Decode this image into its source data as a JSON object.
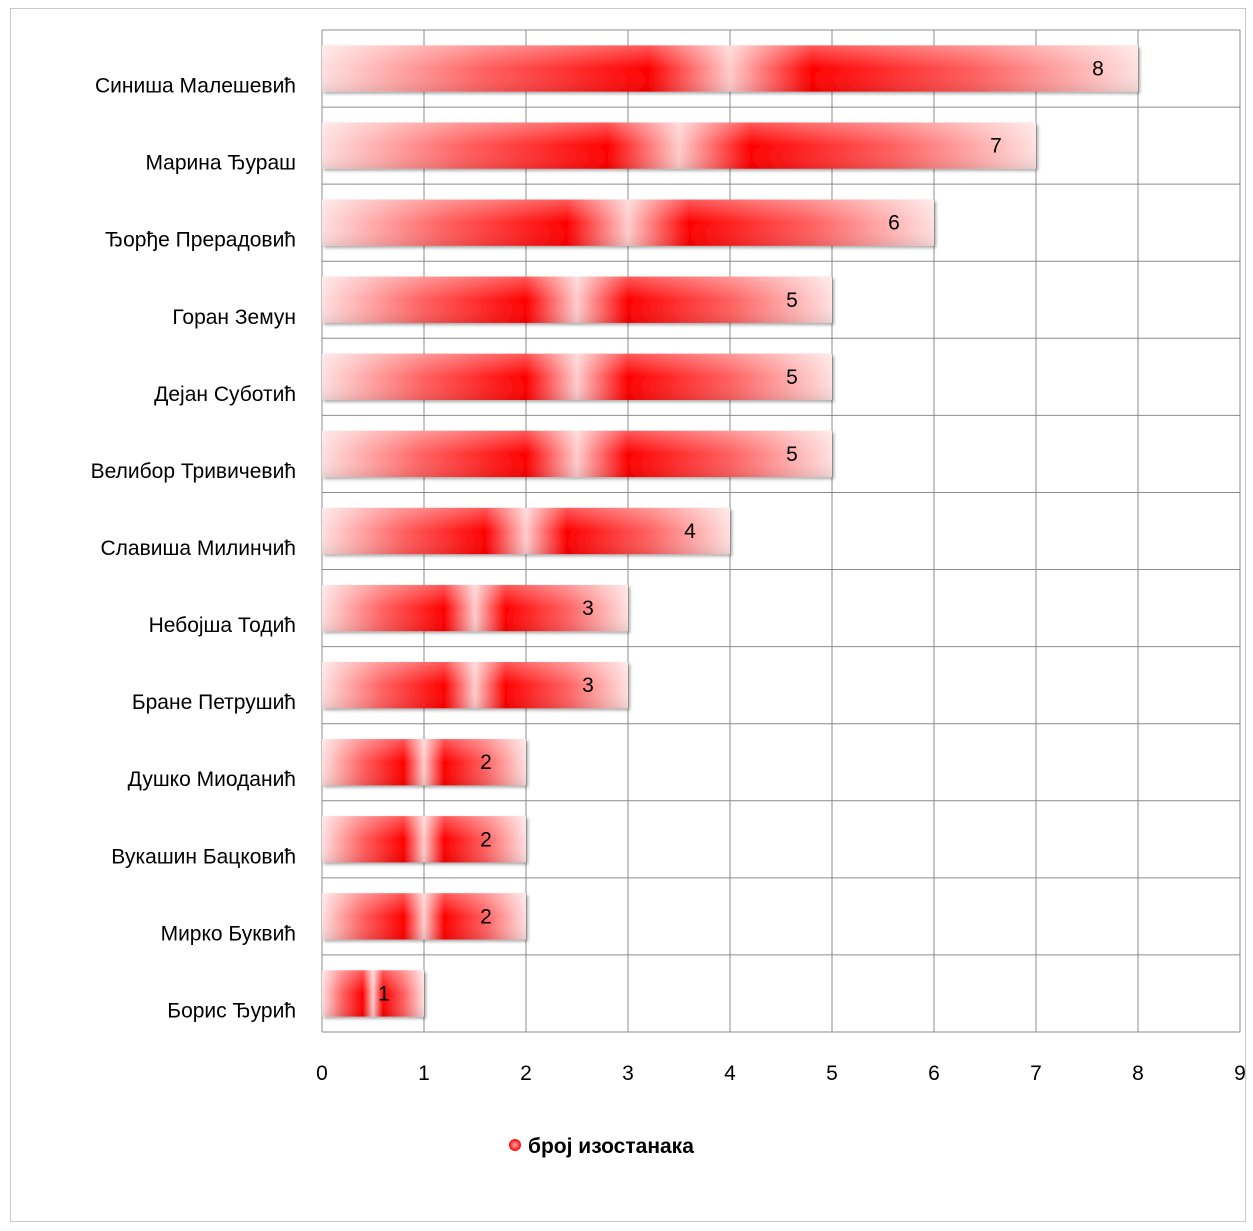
{
  "chart_data": {
    "type": "bar",
    "orientation": "horizontal",
    "categories": [
      "Синиша Малешевић",
      "Марина Ђураш",
      "Ђорђе Прерадовић",
      "Горан Земун",
      "Дејан Суботић",
      "Велибор Тривичевић",
      "Славиша Милинчић",
      "Небојша Тодић",
      "Бране Петрушић",
      "Душко Миоданић",
      "Вукашин Бацковић",
      "Мирко Буквић",
      "Борис Ђурић"
    ],
    "series": [
      {
        "name": "број изостанака",
        "values": [
          8,
          7,
          6,
          5,
          5,
          5,
          4,
          3,
          3,
          2,
          2,
          2,
          1
        ],
        "color": "#ff0000"
      }
    ],
    "xlim": [
      0,
      9
    ],
    "x_ticks": [
      "0",
      "1",
      "2",
      "3",
      "4",
      "5",
      "6",
      "7",
      "8",
      "9"
    ],
    "grid": true,
    "data_labels": true,
    "legend_position": "bottom"
  },
  "legend": {
    "label": "број изостанака"
  }
}
